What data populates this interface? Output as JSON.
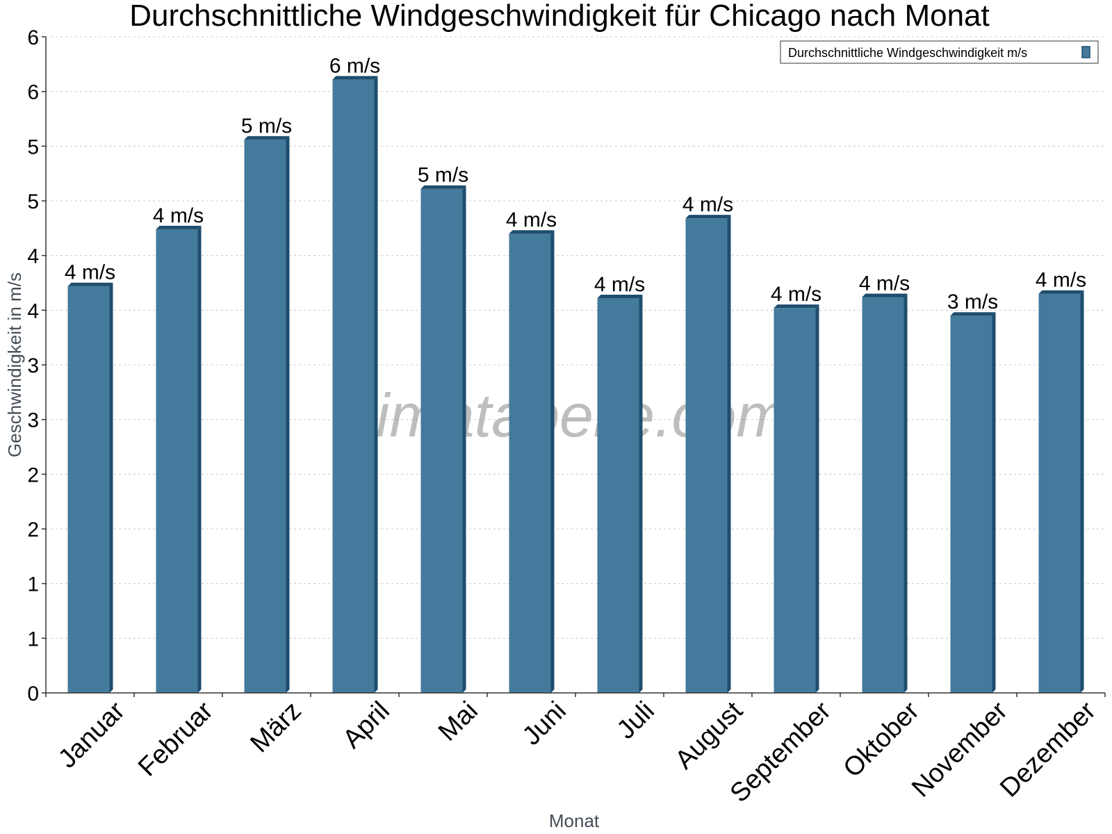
{
  "colors": {
    "bar": "#447a9c",
    "bar_edge": "#1f4d6e",
    "axis": "#333333"
  },
  "watermark": "klimatabelle.com",
  "chart_data": {
    "type": "bar",
    "title": "Durchschnittliche Windgeschwindigkeit für Chicago nach Monat",
    "xlabel": "Monat",
    "ylabel": "Geschwindigkeit in m/s",
    "ylim": [
      0,
      6
    ],
    "yticks": [
      0,
      0.5,
      1,
      1.5,
      2,
      2.5,
      3,
      3.5,
      4,
      4.5,
      5,
      5.5,
      6
    ],
    "ytick_labels": [
      "0",
      "1",
      "1",
      "2",
      "2",
      "3",
      "3",
      "4",
      "4",
      "5",
      "5",
      "6",
      "6"
    ],
    "grid": true,
    "legend": {
      "position": "top-right",
      "entries": [
        "Durchschnittliche Windgeschwindigkeit m/s"
      ]
    },
    "categories": [
      "Januar",
      "Februar",
      "März",
      "April",
      "Mai",
      "Juni",
      "Juli",
      "August",
      "September",
      "Oktober",
      "November",
      "Dezember"
    ],
    "series": [
      {
        "name": "Durchschnittliche Windgeschwindigkeit m/s",
        "values": [
          3.72,
          4.24,
          5.06,
          5.61,
          4.61,
          4.2,
          3.61,
          4.34,
          3.52,
          3.62,
          3.45,
          3.65
        ],
        "labels": [
          "4 m/s",
          "4 m/s",
          "5 m/s",
          "6 m/s",
          "5 m/s",
          "4 m/s",
          "4 m/s",
          "4 m/s",
          "4 m/s",
          "4 m/s",
          "3 m/s",
          "4 m/s"
        ]
      }
    ]
  }
}
